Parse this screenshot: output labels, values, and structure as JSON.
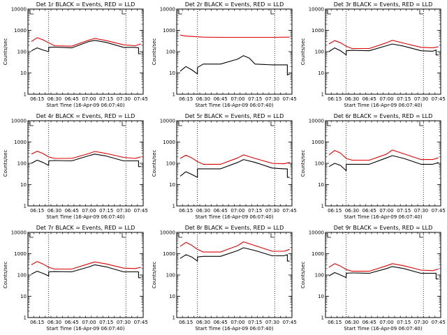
{
  "figure": {
    "black_label": "BLACK = Events",
    "red_label": "RED = LLD",
    "colors": {
      "events": "#000000",
      "lld": "#e00000",
      "axes": "#000000"
    }
  },
  "chart_data": [
    {
      "type": "line",
      "title": "Det 1r BLACK = Events, RED = LLD",
      "xlabel": "Start Time (16-Apr-09 06:07:40)",
      "ylabel": "Counts/sec",
      "yscale": "log",
      "ylim": [
        1,
        10000
      ],
      "yticks": [
        "1",
        "10",
        "100",
        "1000",
        "10000"
      ],
      "xticks": [
        "06:15",
        "06:30",
        "06:45",
        "07:00",
        "07:15",
        "07:30",
        "07:45"
      ],
      "vlines": [
        "06:25",
        "07:32"
      ],
      "series": [
        {
          "name": "LLD",
          "color": "#e00000",
          "x": [
            "06:10",
            "06:15",
            "06:20",
            "06:25",
            "06:30",
            "06:45",
            "07:00",
            "07:05",
            "07:15",
            "07:30",
            "07:40",
            "07:45"
          ],
          "values": [
            300,
            450,
            360,
            260,
            190,
            180,
            350,
            420,
            330,
            210,
            190,
            230
          ]
        },
        {
          "name": "Events",
          "color": "#000000",
          "x": [
            "06:10",
            "06:15",
            "06:20",
            "06:25",
            "06:25",
            "06:30",
            "06:45",
            "07:00",
            "07:05",
            "07:15",
            "07:30",
            "07:32",
            "07:32",
            "07:40",
            "07:43",
            "07:43",
            "07:45"
          ],
          "values": [
            110,
            150,
            120,
            100,
            160,
            165,
            150,
            300,
            340,
            270,
            160,
            155,
            160,
            160,
            150,
            80,
            80
          ]
        }
      ]
    },
    {
      "type": "line",
      "title": "Det 2r BLACK = Events, RED = LLD",
      "xlabel": "Start Time (16-Apr-09 06:07:40)",
      "ylabel": "Counts/sec",
      "yscale": "log",
      "ylim": [
        1,
        10000
      ],
      "yticks": [
        "1",
        "10",
        "100",
        "1000",
        "10000"
      ],
      "xticks": [
        "06:15",
        "06:30",
        "06:45",
        "07:00",
        "07:15",
        "07:30",
        "07:45"
      ],
      "vlines": [
        "06:25",
        "07:32"
      ],
      "series": [
        {
          "name": "LLD",
          "color": "#e00000",
          "x": [
            "06:10",
            "06:15",
            "06:30",
            "06:45",
            "07:00",
            "07:15",
            "07:30",
            "07:45"
          ],
          "values": [
            600,
            540,
            480,
            470,
            470,
            470,
            470,
            480
          ]
        },
        {
          "name": "Events",
          "color": "#000000",
          "x": [
            "06:10",
            "06:15",
            "06:20",
            "06:25",
            "06:25",
            "06:30",
            "06:45",
            "07:00",
            "07:05",
            "07:10",
            "07:15",
            "07:30",
            "07:32",
            "07:32",
            "07:40",
            "07:43",
            "07:43",
            "07:45"
          ],
          "values": [
            12,
            20,
            14,
            9,
            18,
            26,
            26,
            45,
            65,
            50,
            26,
            24,
            24,
            24,
            24,
            24,
            8,
            9
          ]
        }
      ]
    },
    {
      "type": "line",
      "title": "Det 3r BLACK = Events, RED = LLD",
      "xlabel": "Start Time (16-Apr-09 06:07:40)",
      "ylabel": "Counts/sec",
      "yscale": "log",
      "ylim": [
        1,
        10000
      ],
      "yticks": [
        "1",
        "10",
        "100",
        "1000",
        "10000"
      ],
      "xticks": [
        "06:15",
        "06:30",
        "06:45",
        "07:00",
        "07:15",
        "07:30",
        "07:45"
      ],
      "vlines": [
        "06:25",
        "07:32"
      ],
      "series": [
        {
          "name": "LLD",
          "color": "#e00000",
          "x": [
            "06:10",
            "06:15",
            "06:20",
            "06:25",
            "06:30",
            "06:45",
            "07:00",
            "07:05",
            "07:15",
            "07:30",
            "07:40",
            "07:45"
          ],
          "values": [
            230,
            330,
            260,
            180,
            140,
            140,
            260,
            340,
            250,
            160,
            150,
            170
          ]
        },
        {
          "name": "Events",
          "color": "#000000",
          "x": [
            "06:10",
            "06:15",
            "06:20",
            "06:25",
            "06:25",
            "06:30",
            "06:45",
            "07:00",
            "07:05",
            "07:15",
            "07:30",
            "07:40",
            "07:43",
            "07:43",
            "07:45"
          ],
          "values": [
            100,
            150,
            110,
            70,
            110,
            115,
            110,
            190,
            230,
            180,
            110,
            105,
            120,
            70,
            70
          ]
        }
      ]
    },
    {
      "type": "line",
      "title": "Det 4r BLACK = Events, RED = LLD",
      "xlabel": "Start Time (16-Apr-09 06:07:40)",
      "ylabel": "Counts/sec",
      "yscale": "log",
      "ylim": [
        1,
        10000
      ],
      "yticks": [
        "1",
        "10",
        "100",
        "1000",
        "10000"
      ],
      "xticks": [
        "06:15",
        "06:30",
        "06:45",
        "07:00",
        "07:15",
        "07:30",
        "07:45"
      ],
      "vlines": [
        "06:25",
        "07:32"
      ],
      "series": [
        {
          "name": "LLD",
          "color": "#e00000",
          "x": [
            "06:10",
            "06:15",
            "06:20",
            "06:25",
            "06:30",
            "06:45",
            "07:00",
            "07:05",
            "07:15",
            "07:30",
            "07:40",
            "07:45"
          ],
          "values": [
            270,
            370,
            290,
            200,
            170,
            170,
            290,
            360,
            290,
            190,
            170,
            200
          ]
        },
        {
          "name": "Events",
          "color": "#000000",
          "x": [
            "06:10",
            "06:15",
            "06:20",
            "06:25",
            "06:25",
            "06:30",
            "06:45",
            "07:00",
            "07:05",
            "07:15",
            "07:30",
            "07:40",
            "07:43",
            "07:43",
            "07:45"
          ],
          "values": [
            100,
            140,
            110,
            80,
            130,
            135,
            130,
            230,
            270,
            220,
            130,
            130,
            130,
            70,
            70
          ]
        }
      ]
    },
    {
      "type": "line",
      "title": "Det 5r BLACK = Events, RED = LLD",
      "xlabel": "Start Time (16-Apr-09 06:07:40)",
      "ylabel": "Counts/sec",
      "yscale": "log",
      "ylim": [
        1,
        10000
      ],
      "yticks": [
        "1",
        "10",
        "100",
        "1000",
        "10000"
      ],
      "xticks": [
        "06:15",
        "06:30",
        "06:45",
        "07:00",
        "07:15",
        "07:30",
        "07:45"
      ],
      "vlines": [
        "06:25",
        "07:32"
      ],
      "series": [
        {
          "name": "LLD",
          "color": "#e00000",
          "x": [
            "06:10",
            "06:15",
            "06:20",
            "06:25",
            "06:30",
            "06:45",
            "07:00",
            "07:05",
            "07:15",
            "07:30",
            "07:40",
            "07:45"
          ],
          "values": [
            170,
            240,
            180,
            120,
            90,
            90,
            180,
            250,
            170,
            100,
            95,
            110
          ]
        },
        {
          "name": "Events",
          "color": "#000000",
          "x": [
            "06:10",
            "06:15",
            "06:20",
            "06:25",
            "06:25",
            "06:30",
            "06:45",
            "07:00",
            "07:05",
            "07:15",
            "07:30",
            "07:40",
            "07:43",
            "07:43",
            "07:45"
          ],
          "values": [
            25,
            40,
            30,
            22,
            55,
            55,
            55,
            110,
            150,
            110,
            60,
            55,
            55,
            22,
            22
          ]
        }
      ]
    },
    {
      "type": "line",
      "title": "Det 6r BLACK = Events, RED = LLD",
      "xlabel": "Start Time (16-Apr-09 06:07:40)",
      "ylabel": "Counts/sec",
      "yscale": "log",
      "ylim": [
        1,
        10000
      ],
      "yticks": [
        "1",
        "10",
        "100",
        "1000",
        "10000"
      ],
      "xticks": [
        "06:15",
        "06:30",
        "06:45",
        "07:00",
        "07:15",
        "07:30",
        "07:45"
      ],
      "vlines": [
        "06:25",
        "07:32"
      ],
      "series": [
        {
          "name": "LLD",
          "color": "#e00000",
          "x": [
            "06:10",
            "06:15",
            "06:20",
            "06:25",
            "06:30",
            "06:45",
            "07:00",
            "07:05",
            "07:15",
            "07:30",
            "07:40",
            "07:45"
          ],
          "values": [
            250,
            400,
            300,
            170,
            140,
            140,
            270,
            420,
            280,
            150,
            150,
            180
          ]
        },
        {
          "name": "Events",
          "color": "#000000",
          "x": [
            "06:10",
            "06:15",
            "06:20",
            "06:25",
            "06:25",
            "06:30",
            "06:45",
            "07:00",
            "07:05",
            "07:15",
            "07:30",
            "07:40",
            "07:43",
            "07:43",
            "07:45"
          ],
          "values": [
            70,
            100,
            80,
            45,
            90,
            90,
            90,
            180,
            230,
            170,
            90,
            90,
            100,
            100,
            110
          ]
        }
      ]
    },
    {
      "type": "line",
      "title": "Det 7r BLACK = Events, RED = LLD",
      "xlabel": "Start Time (16-Apr-09 06:07:40)",
      "ylabel": "Counts/sec",
      "yscale": "log",
      "ylim": [
        1,
        10000
      ],
      "yticks": [
        "1",
        "10",
        "100",
        "1000",
        "10000"
      ],
      "xticks": [
        "06:15",
        "06:30",
        "06:45",
        "07:00",
        "07:15",
        "07:30",
        "07:45"
      ],
      "vlines": [
        "06:25",
        "07:32"
      ],
      "series": [
        {
          "name": "LLD",
          "color": "#e00000",
          "x": [
            "06:10",
            "06:15",
            "06:20",
            "06:25",
            "06:30",
            "06:45",
            "07:00",
            "07:05",
            "07:15",
            "07:30",
            "07:40",
            "07:45"
          ],
          "values": [
            300,
            430,
            330,
            230,
            190,
            190,
            340,
            410,
            330,
            210,
            200,
            230
          ]
        },
        {
          "name": "Events",
          "color": "#000000",
          "x": [
            "06:10",
            "06:15",
            "06:20",
            "06:25",
            "06:25",
            "06:30",
            "06:45",
            "07:00",
            "07:05",
            "07:15",
            "07:30",
            "07:40",
            "07:43",
            "07:43",
            "07:45"
          ],
          "values": [
            110,
            150,
            120,
            90,
            140,
            145,
            140,
            240,
            300,
            240,
            140,
            140,
            140,
            75,
            75
          ]
        }
      ]
    },
    {
      "type": "line",
      "title": "Det 8r BLACK = Events, RED = LLD",
      "xlabel": "Start Time (16-Apr-09 06:07:40)",
      "ylabel": "Counts/sec",
      "yscale": "log",
      "ylim": [
        1,
        10000
      ],
      "yticks": [
        "1",
        "10",
        "100",
        "1000",
        "10000"
      ],
      "xticks": [
        "06:15",
        "06:30",
        "06:45",
        "07:00",
        "07:15",
        "07:30",
        "07:45"
      ],
      "vlines": [
        "06:25",
        "07:32"
      ],
      "series": [
        {
          "name": "LLD",
          "color": "#e00000",
          "x": [
            "06:10",
            "06:15",
            "06:20",
            "06:25",
            "06:30",
            "06:45",
            "07:00",
            "07:05",
            "07:15",
            "07:30",
            "07:40",
            "07:45"
          ],
          "values": [
            2200,
            3400,
            2500,
            1600,
            1200,
            1200,
            2400,
            3600,
            2400,
            1300,
            1300,
            1600
          ]
        },
        {
          "name": "Events",
          "color": "#000000",
          "x": [
            "06:10",
            "06:15",
            "06:20",
            "06:25",
            "06:25",
            "06:30",
            "06:45",
            "07:00",
            "07:05",
            "07:15",
            "07:30",
            "07:40",
            "07:43",
            "07:43",
            "07:45"
          ],
          "values": [
            600,
            900,
            700,
            450,
            700,
            750,
            750,
            1400,
            1900,
            1400,
            800,
            800,
            900,
            450,
            450
          ]
        }
      ]
    },
    {
      "type": "line",
      "title": "Det 9r BLACK = Events, RED = LLD",
      "xlabel": "Start Time (16-Apr-09 06:07:40)",
      "ylabel": "Counts/sec",
      "yscale": "log",
      "ylim": [
        1,
        10000
      ],
      "yticks": [
        "1",
        "10",
        "100",
        "1000",
        "10000"
      ],
      "xticks": [
        "06:15",
        "06:30",
        "06:45",
        "07:00",
        "07:15",
        "07:30",
        "07:45"
      ],
      "vlines": [
        "06:25",
        "07:32"
      ],
      "series": [
        {
          "name": "LLD",
          "color": "#e00000",
          "x": [
            "06:10",
            "06:15",
            "06:20",
            "06:25",
            "06:30",
            "06:45",
            "07:00",
            "07:05",
            "07:15",
            "07:30",
            "07:40",
            "07:45"
          ],
          "values": [
            230,
            340,
            260,
            180,
            150,
            150,
            270,
            340,
            270,
            170,
            160,
            190
          ]
        },
        {
          "name": "Events",
          "color": "#000000",
          "x": [
            "06:10",
            "06:15",
            "06:20",
            "06:25",
            "06:25",
            "06:30",
            "06:45",
            "07:00",
            "07:05",
            "07:15",
            "07:30",
            "07:40",
            "07:43",
            "07:43",
            "07:45"
          ],
          "values": [
            90,
            130,
            100,
            75,
            120,
            125,
            120,
            200,
            250,
            200,
            120,
            120,
            120,
            65,
            65
          ]
        }
      ]
    }
  ]
}
